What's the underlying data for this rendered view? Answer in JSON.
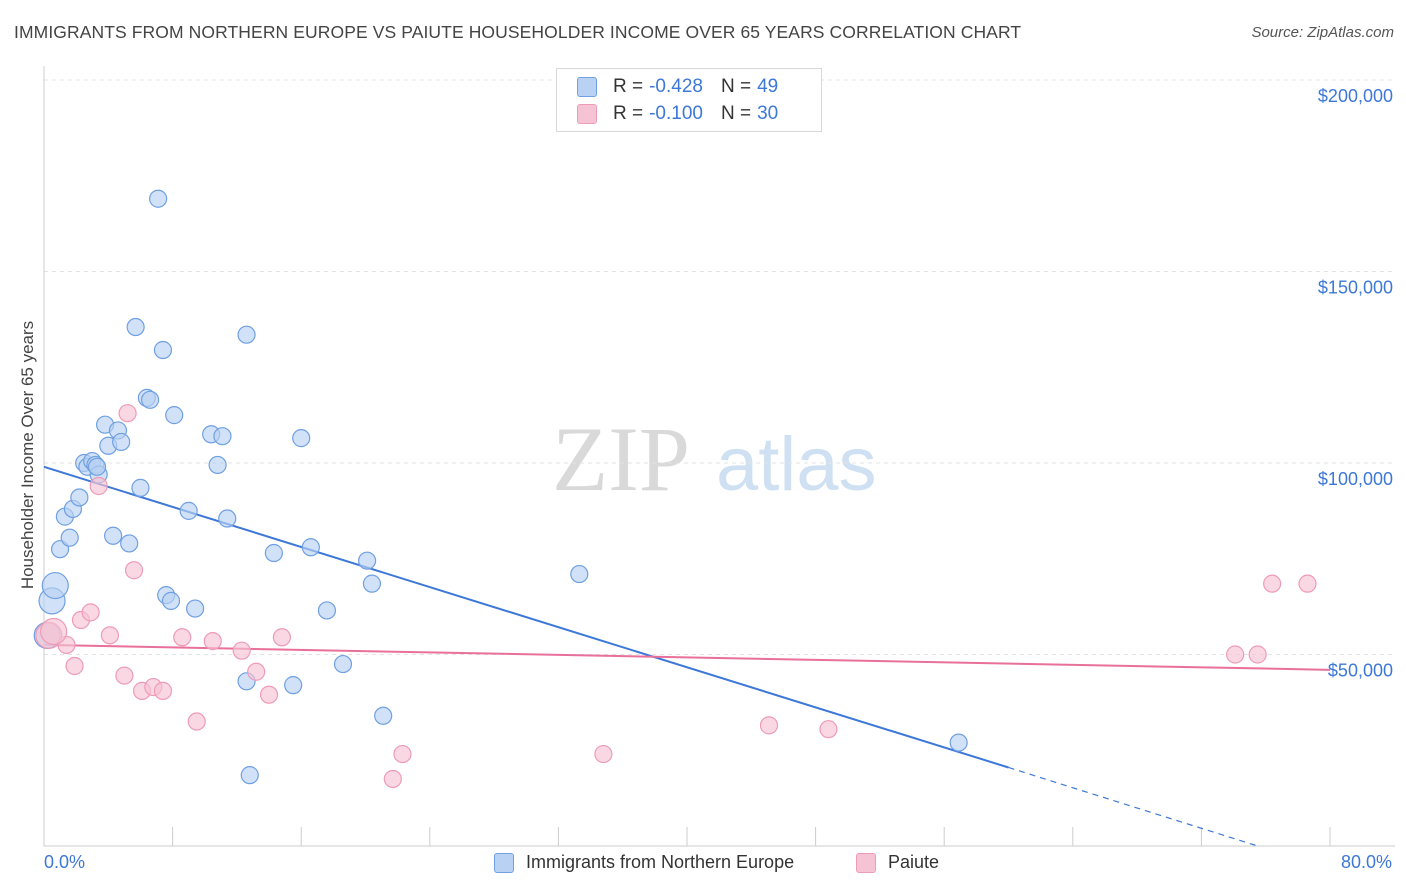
{
  "title": "IMMIGRANTS FROM NORTHERN EUROPE VS PAIUTE HOUSEHOLDER INCOME OVER 65 YEARS CORRELATION CHART",
  "source": "Source: ZipAtlas.com",
  "watermark": {
    "zip": "ZIP",
    "atlas": "atlas"
  },
  "colors": {
    "blue": "#3d78d8",
    "blue_fill": "#b9d1f3",
    "blue_stroke": "#6fa0e2",
    "pink": "#e8709a",
    "pink_fill": "#f6c3d4",
    "pink_stroke": "#ee9bb7",
    "grid": "#e3e3e3",
    "axis_text": "#3d78d8"
  },
  "legend": {
    "rows": [
      {
        "r_label": "R =",
        "r_value": "-0.428",
        "n_label": "N =",
        "n_value": "49",
        "color": "blue"
      },
      {
        "r_label": "R =",
        "r_value": "-0.100",
        "n_label": "N =",
        "n_value": "30",
        "color": "pink"
      }
    ]
  },
  "bottom_legend": [
    "Immigrants from Northern Europe",
    "Paiute"
  ],
  "x_axis": {
    "min_label": "0.0%",
    "max_label": "80.0%"
  },
  "chart_data": {
    "type": "scatter",
    "title": "IMMIGRANTS FROM NORTHERN EUROPE VS PAIUTE HOUSEHOLDER INCOME OVER 65 YEARS CORRELATION CHART",
    "xlabel": "",
    "ylabel": "Householder Income Over 65 years",
    "xlim": [
      0,
      80
    ],
    "ylim": [
      0,
      205000
    ],
    "y_ticks": [
      50000,
      100000,
      150000,
      200000
    ],
    "y_tick_labels": [
      "$50,000",
      "$100,000",
      "$150,000",
      "$200,000"
    ],
    "grid": true,
    "legend_position": "top-center",
    "series": [
      {
        "name": "Immigrants from Northern Europe",
        "color": "blue",
        "points": [
          [
            0.2,
            55000
          ],
          [
            0.5,
            64000
          ],
          [
            0.7,
            68000
          ],
          [
            1.0,
            77500
          ],
          [
            1.3,
            86000
          ],
          [
            1.6,
            80500
          ],
          [
            1.8,
            88000
          ],
          [
            2.2,
            91000
          ],
          [
            2.5,
            100000
          ],
          [
            2.7,
            99000
          ],
          [
            3.0,
            100500
          ],
          [
            3.2,
            99500
          ],
          [
            3.4,
            97000
          ],
          [
            3.8,
            110000
          ],
          [
            4.0,
            104500
          ],
          [
            4.3,
            81000
          ],
          [
            4.6,
            108500
          ],
          [
            4.8,
            105500
          ],
          [
            5.3,
            79000
          ],
          [
            5.7,
            135500
          ],
          [
            6.0,
            93500
          ],
          [
            6.4,
            117000
          ],
          [
            6.6,
            116500
          ],
          [
            7.1,
            169000
          ],
          [
            7.4,
            129500
          ],
          [
            7.6,
            65500
          ],
          [
            7.9,
            64000
          ],
          [
            8.1,
            112500
          ],
          [
            9.0,
            87500
          ],
          [
            9.4,
            62000
          ],
          [
            10.4,
            107500
          ],
          [
            10.8,
            99500
          ],
          [
            11.1,
            107000
          ],
          [
            11.4,
            85500
          ],
          [
            12.6,
            43000
          ],
          [
            12.8,
            18500
          ],
          [
            12.6,
            133500
          ],
          [
            14.3,
            76500
          ],
          [
            15.5,
            42000
          ],
          [
            16.0,
            106500
          ],
          [
            16.6,
            78000
          ],
          [
            17.6,
            61500
          ],
          [
            18.6,
            47500
          ],
          [
            20.1,
            74500
          ],
          [
            20.4,
            68500
          ],
          [
            21.1,
            34000
          ],
          [
            33.3,
            71000
          ],
          [
            56.9,
            27000
          ],
          [
            3.3,
            99000
          ]
        ]
      },
      {
        "name": "Paiute",
        "color": "pink",
        "points": [
          [
            0.3,
            55000
          ],
          [
            1.4,
            52500
          ],
          [
            1.9,
            47000
          ],
          [
            2.3,
            59000
          ],
          [
            2.9,
            61000
          ],
          [
            3.4,
            94000
          ],
          [
            4.1,
            55000
          ],
          [
            5.0,
            44500
          ],
          [
            5.2,
            113000
          ],
          [
            5.6,
            72000
          ],
          [
            6.1,
            40500
          ],
          [
            6.8,
            41500
          ],
          [
            7.4,
            40500
          ],
          [
            9.5,
            32500
          ],
          [
            8.6,
            54500
          ],
          [
            10.5,
            53500
          ],
          [
            12.3,
            51000
          ],
          [
            13.2,
            45500
          ],
          [
            14.0,
            39500
          ],
          [
            14.8,
            54500
          ],
          [
            21.7,
            17500
          ],
          [
            22.3,
            24000
          ],
          [
            34.8,
            24000
          ],
          [
            45.1,
            31500
          ],
          [
            48.8,
            30500
          ],
          [
            74.1,
            50000
          ],
          [
            75.5,
            50000
          ],
          [
            76.4,
            68500
          ],
          [
            78.6,
            68500
          ],
          [
            0.6,
            56000
          ]
        ]
      }
    ],
    "trend_lines": [
      {
        "series": "Immigrants from Northern Europe",
        "x0": 0,
        "y0": 99000,
        "x1": 60.0,
        "y1": 20500,
        "dashed_to_x": 75.5,
        "dashed_to_y": 0
      },
      {
        "series": "Paiute",
        "x0": 0,
        "y0": 52500,
        "x1": 80,
        "y1": 46000
      }
    ]
  }
}
